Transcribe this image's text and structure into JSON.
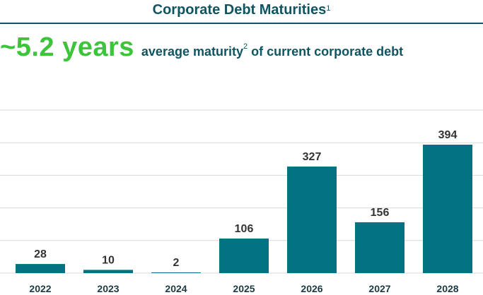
{
  "header": {
    "title": "Corporate Debt Maturities",
    "title_footnote": "1",
    "highlight_value": "~5.2 years",
    "highlight_text_pre": "average maturity",
    "highlight_footnote": "2",
    "highlight_text_post": "of current corporate debt"
  },
  "colors": {
    "bar": "#037383",
    "title": "#0f5561",
    "highlight": "#3cc43a",
    "grid": "#d9d9d9"
  },
  "chart_data": {
    "type": "bar",
    "title": "Corporate Debt Maturities",
    "categories": [
      "2022",
      "2023",
      "2024",
      "2025",
      "2026",
      "2027",
      "2028"
    ],
    "values": [
      28,
      10,
      2,
      106,
      327,
      156,
      394
    ],
    "xlabel": "",
    "ylabel": "",
    "ylim": [
      0,
      500
    ],
    "grid": true,
    "legend": "none"
  }
}
